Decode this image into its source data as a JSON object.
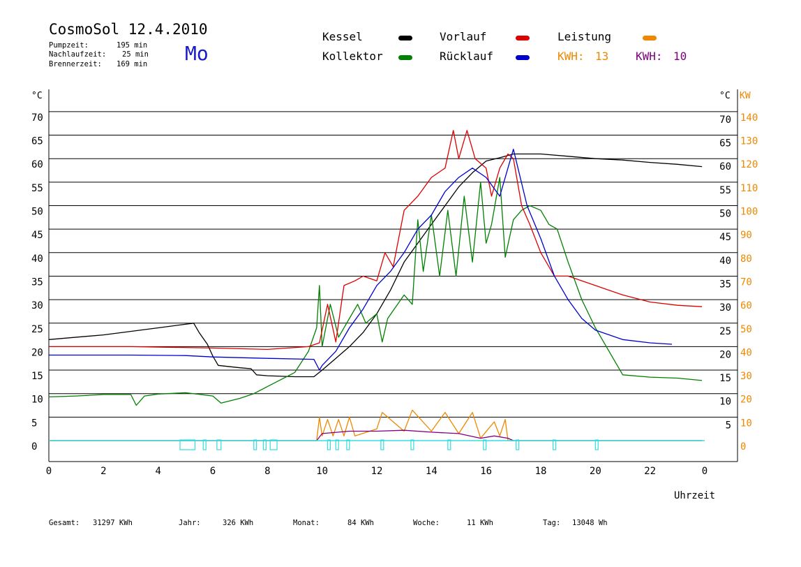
{
  "header": {
    "title": "CosmoSol 12.4.2010",
    "day": "Mo",
    "info": [
      {
        "label": "Pumpzeit:",
        "value": "195 min"
      },
      {
        "label": "Nachlaufzeit:",
        "value": "25 min"
      },
      {
        "label": "Brennerzeit:",
        "value": "169 min"
      }
    ]
  },
  "legend": {
    "kessel": "Kessel",
    "kollektor": "Kollektor",
    "vorlauf": "Vorlauf",
    "ruecklauf": "Rücklauf",
    "leistung": "Leistung",
    "kwh1_label": "KWH:",
    "kwh1_value": "13",
    "kwh2_label": "KWH:",
    "kwh2_value": "10"
  },
  "colors": {
    "kessel": "#000000",
    "kollektor": "#008000",
    "vorlauf": "#dd0000",
    "ruecklauf": "#0000cc",
    "leistung": "#ee8800",
    "leistung2": "#800080",
    "pump": "#33dddd"
  },
  "footer": {
    "gesamt_label": "Gesamt:",
    "gesamt_value": "31297 KWh",
    "jahr_label": "Jahr:",
    "jahr_value": "326 KWh",
    "monat_label": "Monat:",
    "monat_value": "84 KWh",
    "woche_label": "Woche:",
    "woche_value": "11 KWh",
    "tag_label": "Tag:",
    "tag_value": "13048 Wh"
  },
  "chart_data": {
    "type": "line",
    "title": "CosmoSol 12.4.2010",
    "xlabel": "Uhrzeit",
    "ylabel_left": "°C",
    "ylabel_right": "°C",
    "ylabel_right2": "KW",
    "x_range": [
      0,
      24
    ],
    "x_ticks": [
      "0",
      "2",
      "4",
      "6",
      "8",
      "10",
      "12",
      "14",
      "16",
      "18",
      "20",
      "22",
      "0"
    ],
    "y_range": [
      -2,
      72
    ],
    "y_ticks_left": [
      "0",
      "5",
      "10",
      "15",
      "20",
      "25",
      "30",
      "35",
      "40",
      "45",
      "50",
      "55",
      "60",
      "65",
      "70"
    ],
    "y_ticks_right": [
      "5",
      "10",
      "15",
      "20",
      "25",
      "30",
      "35",
      "40",
      "45",
      "50",
      "55",
      "60",
      "65",
      "70"
    ],
    "y_ticks_kw": [
      "0",
      "10",
      "20",
      "30",
      "40",
      "50",
      "60",
      "70",
      "80",
      "90",
      "100",
      "110",
      "120",
      "130",
      "140"
    ],
    "grid": true,
    "series": [
      {
        "name": "Kessel",
        "points": [
          [
            0,
            21.5
          ],
          [
            2,
            22.5
          ],
          [
            4,
            24
          ],
          [
            5.3,
            25
          ],
          [
            5.5,
            23
          ],
          [
            5.8,
            20.5
          ],
          [
            6,
            18
          ],
          [
            6.2,
            16
          ],
          [
            7,
            15.5
          ],
          [
            7.4,
            15.3
          ],
          [
            7.6,
            14
          ],
          [
            8,
            13.8
          ],
          [
            9,
            13.6
          ],
          [
            9.7,
            13.6
          ],
          [
            10,
            15
          ],
          [
            10.5,
            17.5
          ],
          [
            11,
            20
          ],
          [
            11.5,
            23
          ],
          [
            12,
            27
          ],
          [
            12.5,
            32
          ],
          [
            13,
            38
          ],
          [
            13.5,
            42
          ],
          [
            14,
            46
          ],
          [
            14.5,
            50
          ],
          [
            15,
            54
          ],
          [
            15.5,
            57
          ],
          [
            16,
            59.5
          ],
          [
            16.5,
            60.2
          ],
          [
            17,
            61
          ],
          [
            18,
            61
          ],
          [
            19,
            60.5
          ],
          [
            20,
            60
          ],
          [
            21,
            59.7
          ],
          [
            22,
            59.2
          ],
          [
            23,
            58.8
          ],
          [
            23.9,
            58.3
          ]
        ]
      },
      {
        "name": "Kollektor",
        "points": [
          [
            0,
            9.3
          ],
          [
            1,
            9.5
          ],
          [
            2,
            9.8
          ],
          [
            3,
            9.8
          ],
          [
            3.2,
            7.5
          ],
          [
            3.5,
            9.5
          ],
          [
            4,
            9.9
          ],
          [
            5,
            10.2
          ],
          [
            6,
            9.5
          ],
          [
            6.3,
            8
          ],
          [
            7,
            9
          ],
          [
            7.5,
            10
          ],
          [
            8,
            11.5
          ],
          [
            9,
            14.5
          ],
          [
            9.5,
            19
          ],
          [
            9.8,
            24
          ],
          [
            9.9,
            33
          ],
          [
            10,
            20
          ],
          [
            10.3,
            29
          ],
          [
            10.6,
            22
          ],
          [
            11,
            26
          ],
          [
            11.3,
            29
          ],
          [
            11.6,
            25
          ],
          [
            12,
            27
          ],
          [
            12.2,
            21
          ],
          [
            12.4,
            26
          ],
          [
            13,
            31
          ],
          [
            13.3,
            29
          ],
          [
            13.5,
            47
          ],
          [
            13.7,
            36
          ],
          [
            14,
            48
          ],
          [
            14.3,
            35
          ],
          [
            14.6,
            49
          ],
          [
            14.9,
            35
          ],
          [
            15.2,
            52
          ],
          [
            15.5,
            38
          ],
          [
            15.8,
            55
          ],
          [
            16,
            42
          ],
          [
            16.2,
            46
          ],
          [
            16.5,
            56
          ],
          [
            16.7,
            39
          ],
          [
            17,
            47
          ],
          [
            17.3,
            49
          ],
          [
            17.6,
            50
          ],
          [
            18,
            49
          ],
          [
            18.3,
            46
          ],
          [
            18.6,
            45
          ],
          [
            19,
            38
          ],
          [
            19.5,
            30
          ],
          [
            20,
            24
          ],
          [
            20.5,
            19
          ],
          [
            21,
            14
          ],
          [
            22,
            13.5
          ],
          [
            23,
            13.3
          ],
          [
            23.9,
            12.8
          ]
        ]
      },
      {
        "name": "Vorlauf",
        "points": [
          [
            0,
            20
          ],
          [
            3,
            20
          ],
          [
            6,
            19.7
          ],
          [
            8,
            19.4
          ],
          [
            9.5,
            20
          ],
          [
            9.9,
            20.8
          ],
          [
            10.2,
            29
          ],
          [
            10.5,
            21
          ],
          [
            10.8,
            33
          ],
          [
            11.2,
            34
          ],
          [
            11.5,
            35
          ],
          [
            12,
            34
          ],
          [
            12.3,
            40
          ],
          [
            12.6,
            37
          ],
          [
            13,
            49
          ],
          [
            13.5,
            52
          ],
          [
            14,
            56
          ],
          [
            14.5,
            58
          ],
          [
            14.8,
            66
          ],
          [
            15,
            60
          ],
          [
            15.3,
            66
          ],
          [
            15.6,
            60
          ],
          [
            16,
            58
          ],
          [
            16.2,
            52
          ],
          [
            16.5,
            58
          ],
          [
            16.8,
            61
          ],
          [
            17,
            60
          ],
          [
            17.3,
            50
          ],
          [
            17.6,
            46
          ],
          [
            18,
            40
          ],
          [
            18.5,
            35
          ],
          [
            19,
            35
          ],
          [
            20,
            33
          ],
          [
            21,
            31
          ],
          [
            22,
            29.5
          ],
          [
            23,
            28.8
          ],
          [
            23.9,
            28.5
          ]
        ]
      },
      {
        "name": "Rücklauf",
        "points": [
          [
            0,
            18.2
          ],
          [
            3,
            18.2
          ],
          [
            5,
            18.1
          ],
          [
            6,
            17.8
          ],
          [
            8,
            17.5
          ],
          [
            9.7,
            17.3
          ],
          [
            9.9,
            15
          ],
          [
            10,
            16
          ],
          [
            10.5,
            19
          ],
          [
            11,
            24
          ],
          [
            11.5,
            28
          ],
          [
            12,
            33
          ],
          [
            12.5,
            36
          ],
          [
            13,
            40
          ],
          [
            13.5,
            45
          ],
          [
            14,
            48
          ],
          [
            14.5,
            53
          ],
          [
            15,
            56
          ],
          [
            15.5,
            58
          ],
          [
            16,
            56
          ],
          [
            16.5,
            52
          ],
          [
            17,
            62
          ],
          [
            17.5,
            50
          ],
          [
            18,
            43
          ],
          [
            18.5,
            35
          ],
          [
            19,
            30
          ],
          [
            19.5,
            26
          ],
          [
            20,
            23.5
          ],
          [
            21,
            21.5
          ],
          [
            22,
            20.8
          ],
          [
            22.8,
            20.5
          ]
        ]
      },
      {
        "name": "Leistung",
        "points": [
          [
            0,
            0
          ],
          [
            9.8,
            0
          ],
          [
            9.9,
            5
          ],
          [
            10,
            1
          ],
          [
            10.2,
            4.5
          ],
          [
            10.4,
            1
          ],
          [
            10.6,
            4.5
          ],
          [
            10.8,
            1
          ],
          [
            11,
            5
          ],
          [
            11.2,
            1
          ],
          [
            12,
            2.5
          ],
          [
            12.2,
            6
          ],
          [
            13,
            2
          ],
          [
            13.3,
            6.5
          ],
          [
            14,
            2
          ],
          [
            14.5,
            6
          ],
          [
            15,
            1.5
          ],
          [
            15.5,
            6
          ],
          [
            15.8,
            0.5
          ],
          [
            16.3,
            4
          ],
          [
            16.5,
            1
          ],
          [
            16.7,
            4.5
          ],
          [
            16.8,
            0
          ],
          [
            23.9,
            0
          ]
        ]
      },
      {
        "name": "Leistung KWH 10",
        "points": [
          [
            0,
            0
          ],
          [
            9.8,
            0
          ],
          [
            10,
            1.5
          ],
          [
            11,
            2
          ],
          [
            12,
            2
          ],
          [
            13,
            2.2
          ],
          [
            14,
            1.8
          ],
          [
            15,
            1.5
          ],
          [
            15.8,
            0.5
          ],
          [
            16.3,
            1
          ],
          [
            16.8,
            0.5
          ],
          [
            17,
            0
          ],
          [
            23.9,
            0
          ]
        ]
      }
    ]
  }
}
